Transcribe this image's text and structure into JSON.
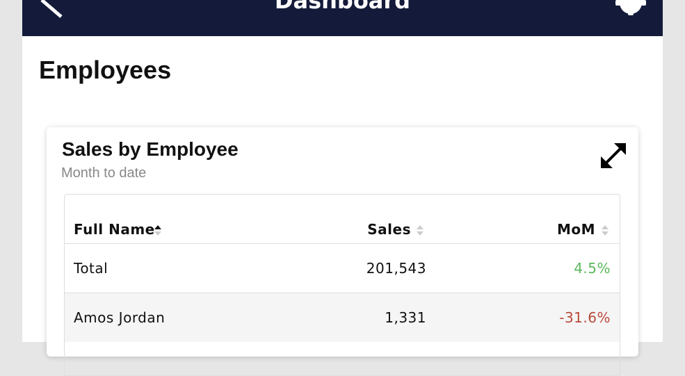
{
  "header": {
    "title": "Dashboard"
  },
  "page": {
    "title": "Employees"
  },
  "card": {
    "title": "Sales by Employee",
    "subtitle": "Month to date"
  },
  "table": {
    "columns": [
      "Full Name",
      "Sales",
      "MoM"
    ],
    "rows": [
      [
        "Total",
        "201,543",
        "4.5%"
      ],
      [
        "Amos Jordan",
        "1,331",
        "-31.6%"
      ]
    ]
  }
}
